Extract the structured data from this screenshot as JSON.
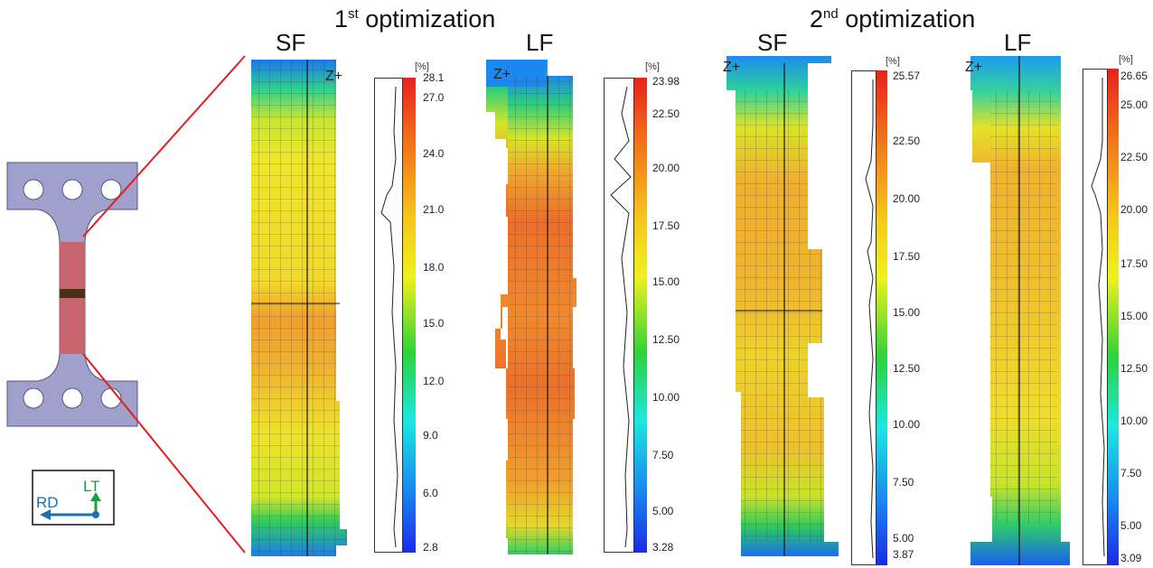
{
  "headings": [
    {
      "base": "1",
      "sup": "st",
      "rest": " optimization"
    },
    {
      "base": "2",
      "sup": "nd",
      "rest": " optimization"
    }
  ],
  "panels": [
    {
      "title": "SF",
      "unit": "[%]",
      "z_label": "Z+",
      "ticks": [
        "28.1",
        "27.0",
        "24.0",
        "21.0",
        "18.0",
        "15.0",
        "12.0",
        "9.0",
        "6.0",
        "2.8"
      ]
    },
    {
      "title": "LF",
      "unit": "[%]",
      "z_label": "Z+",
      "ticks": [
        "23.98",
        "22.50",
        "20.00",
        "17.50",
        "15.00",
        "12.50",
        "10.00",
        "7.50",
        "5.00",
        "3.28"
      ]
    },
    {
      "title": "SF",
      "unit": "[%]",
      "z_label": "Z+",
      "ticks": [
        "25.57",
        "22.50",
        "20.00",
        "17.50",
        "15.00",
        "12.50",
        "10.00",
        "7.50",
        "5.00",
        "3.87"
      ]
    },
    {
      "title": "LF",
      "unit": "[%]",
      "z_label": "Z+",
      "ticks": [
        "26.65",
        "25.00",
        "22.50",
        "20.00",
        "17.50",
        "15.00",
        "12.50",
        "10.00",
        "7.50",
        "5.00",
        "3.09"
      ]
    }
  ],
  "axes": {
    "rd": "RD",
    "lt": "LT"
  },
  "colors": {
    "specimen_fill": "#9fa0cc",
    "gauge_fill": "#c8646e",
    "notch": "#4a3010",
    "zoom_line": "#e02020",
    "rd_color": "#1a6fb8",
    "lt_color": "#1aa040"
  }
}
